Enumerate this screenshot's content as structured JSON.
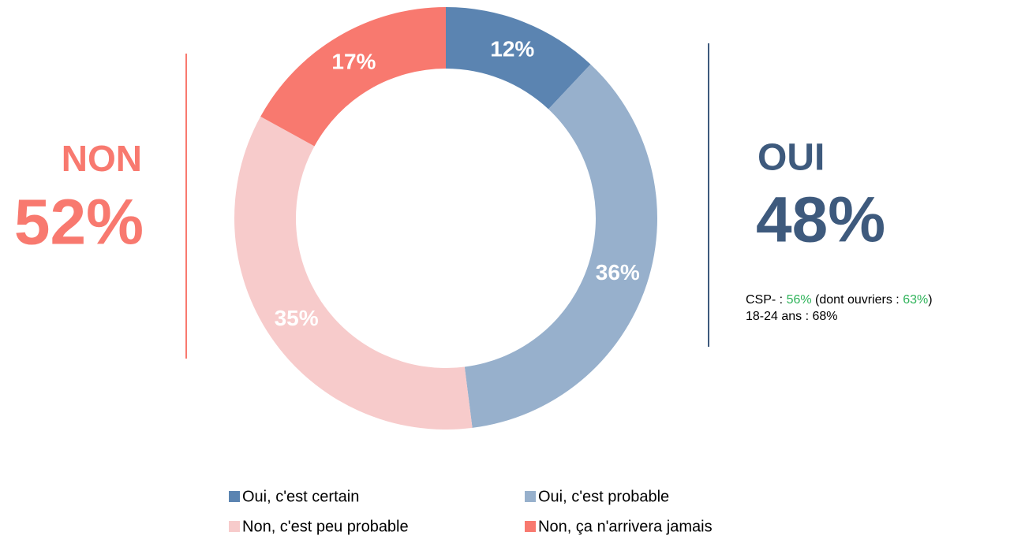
{
  "chart_data": {
    "type": "pie",
    "donut": true,
    "categories": [
      "Oui, c'est certain",
      "Oui, c'est probable",
      "Non, c'est peu probable",
      "Non, ça n'arrivera jamais"
    ],
    "values": [
      12,
      36,
      35,
      17
    ],
    "value_labels": [
      "12%",
      "36%",
      "35%",
      "17%"
    ],
    "colors": [
      "#5b84b1",
      "#97b0cc",
      "#f7cbcb",
      "#f8796f"
    ],
    "annotations": {
      "left_label": "NON",
      "left_value": "52%",
      "right_label": "OUI",
      "right_value": "48%",
      "notes": [
        [
          "CSP-  : ",
          "56%",
          " (dont ouvriers : ",
          "63%",
          ")"
        ],
        [
          "18-24 ans : 68%"
        ]
      ]
    }
  }
}
